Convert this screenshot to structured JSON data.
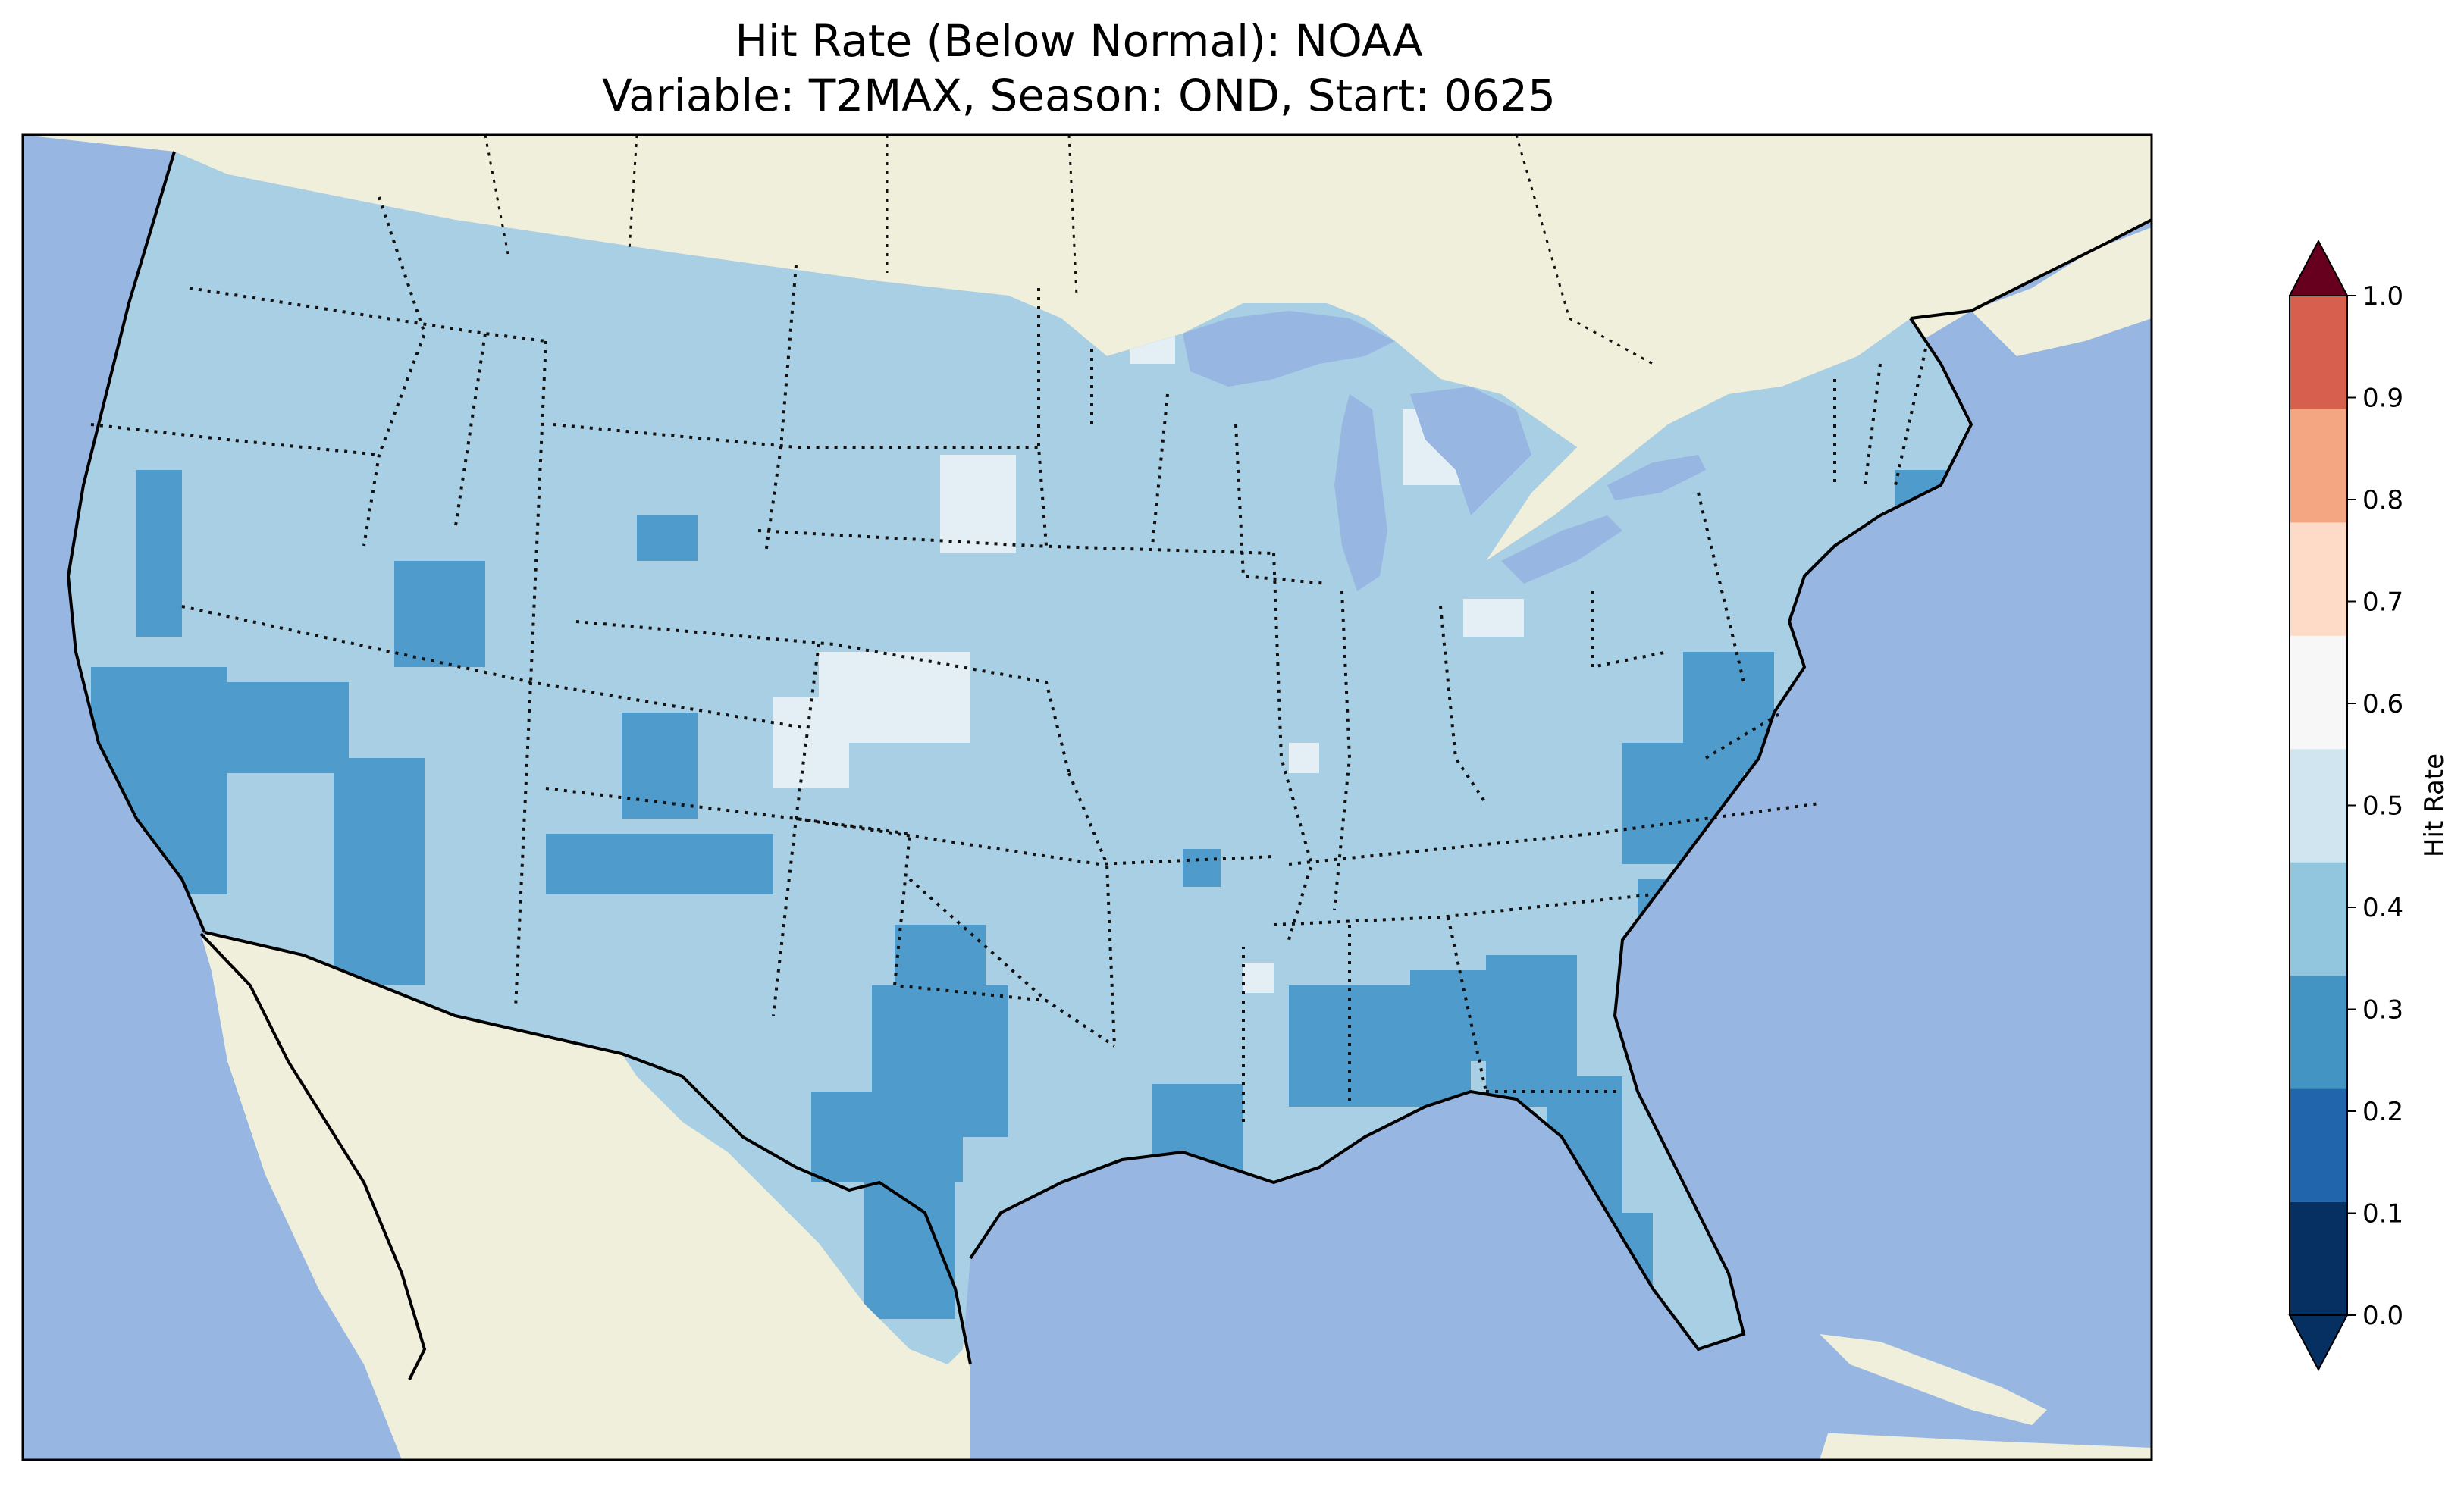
{
  "title": {
    "line1": "Hit Rate (Below Normal): NOAA",
    "line2": "Variable: T2MAX, Season: OND, Start: 0625"
  },
  "colorbar": {
    "label": "Hit Rate",
    "ticks": [
      "0.0",
      "0.1",
      "0.2",
      "0.3",
      "0.4",
      "0.5",
      "0.6",
      "0.7",
      "0.8",
      "0.9",
      "1.0"
    ],
    "colors": [
      "#053061",
      "#2166ac",
      "#4393c3",
      "#92c5de",
      "#d1e5f0",
      "#f7f7f7",
      "#fddbc7",
      "#f4a582",
      "#d6604d",
      "#b2182b",
      "#67001f"
    ],
    "extend": "both"
  },
  "map": {
    "ocean_color": "#97b6e1",
    "land_color": "#efefdb",
    "base_data_color": "#a8cfe4",
    "low_color": "#4f9bcb",
    "high_color": "#e3eef5"
  }
}
